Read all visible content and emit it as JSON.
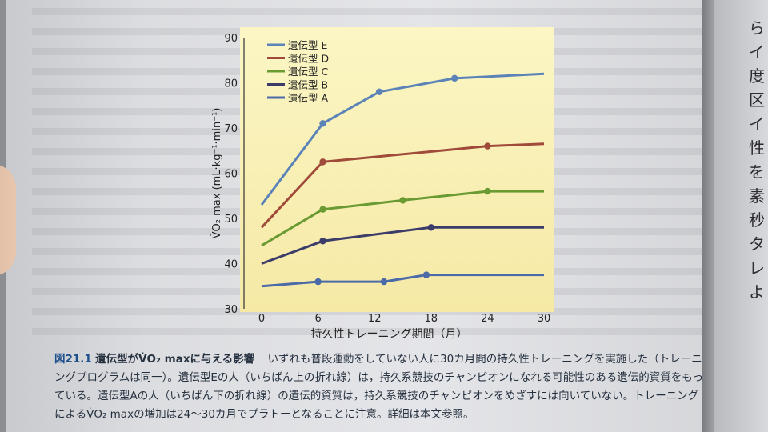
{
  "chart_data": {
    "type": "line",
    "xlabel": "持久性トレーニング期間（月）",
    "ylabel": "V̇O₂ max (mL·kg⁻¹·min⁻¹)",
    "x_ticks": [
      0,
      6,
      12,
      18,
      24,
      30
    ],
    "y_ticks": [
      30,
      40,
      50,
      60,
      70,
      80,
      90
    ],
    "xlim": [
      0,
      30
    ],
    "ylim": [
      30,
      90
    ],
    "legend_position": "top-left",
    "series": [
      {
        "name": "遺伝型 E",
        "color": "#5b83b8",
        "x": [
          0,
          6.5,
          12.5,
          20.5,
          30
        ],
        "y": [
          53,
          71,
          78,
          81,
          82
        ],
        "markers": [
          6.5,
          12.5,
          20.5
        ]
      },
      {
        "name": "遺伝型 D",
        "color": "#a04b3a",
        "x": [
          0,
          6.5,
          24,
          30
        ],
        "y": [
          48,
          62.5,
          66,
          66.5
        ],
        "markers": [
          6.5,
          24
        ]
      },
      {
        "name": "遺伝型 C",
        "color": "#6a9a32",
        "x": [
          0,
          6.5,
          15,
          24,
          30
        ],
        "y": [
          44,
          52,
          54,
          56,
          56
        ],
        "markers": [
          6.5,
          15,
          24
        ]
      },
      {
        "name": "遺伝型 B",
        "color": "#3c3c6a",
        "x": [
          0,
          6.5,
          18,
          30
        ],
        "y": [
          40,
          45,
          48,
          48
        ],
        "markers": [
          6.5,
          18
        ]
      },
      {
        "name": "遺伝型 A",
        "color": "#4a6aa8",
        "x": [
          0,
          6,
          13,
          17.5,
          30
        ],
        "y": [
          35,
          36,
          36,
          37.5,
          37.5
        ],
        "markers": [
          6,
          13,
          17.5
        ]
      }
    ]
  },
  "caption": {
    "figure_label": "図21.1",
    "title": "遺伝型がV̇O₂ maxに与える影響",
    "body": "いずれも普段運動をしていない人に30カ月間の持久性トレーニングを実施した（トレーニングプログラムは同一）。遺伝型Eの人（いちばん上の折れ線）は，持久系競技のチャンピオンになれる可能性のある遺伝的資質をもっている。遺伝型Aの人（いちばん下の折れ線）の遺伝的資質は，持久系競技のチャンピオンをめざすには向いていない。トレーニングによるV̇O₂ maxの増加は24～30カ月でプラトーとなることに注意。詳細は本文参照。"
  },
  "right_page": {
    "lines": [
      "ら",
      "イ",
      "度",
      "区",
      "イ",
      "性",
      "を",
      "素",
      "秒",
      "タ",
      "レ",
      "よ"
    ]
  }
}
